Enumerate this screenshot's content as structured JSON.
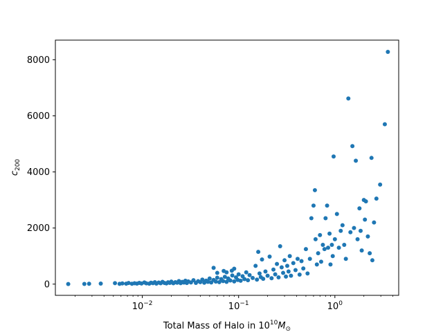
{
  "chart_data": {
    "type": "scatter",
    "xlabel": "Total Mass of Halo in 10^10 M_⊙",
    "xlabel_parts": {
      "prefix": "Total Mass of Halo in 10",
      "exp": "10",
      "symbol": "M",
      "sub": "⊙"
    },
    "ylabel": "c_200",
    "ylabel_parts": {
      "symbol": "c",
      "sub": "200"
    },
    "xscale": "log",
    "xlim": [
      0.00125,
      4.6
    ],
    "ylim": [
      -400,
      8700
    ],
    "xticks": [
      {
        "value": 0.01,
        "base": "10",
        "exp": "−2"
      },
      {
        "value": 0.1,
        "base": "10",
        "exp": "−1"
      },
      {
        "value": 1,
        "base": "10",
        "exp": "0"
      }
    ],
    "yticks": [
      {
        "value": 0,
        "label": "0"
      },
      {
        "value": 2000,
        "label": "2000"
      },
      {
        "value": 4000,
        "label": "4000"
      },
      {
        "value": 6000,
        "label": "6000"
      },
      {
        "value": 8000,
        "label": "8000"
      }
    ],
    "grid": false,
    "color": "#1f77b4",
    "series": [
      {
        "points": [
          [
            0.0017,
            5
          ],
          [
            0.0025,
            8
          ],
          [
            0.0028,
            12
          ],
          [
            0.0037,
            20
          ],
          [
            0.0052,
            35
          ],
          [
            0.0058,
            10
          ],
          [
            0.0062,
            25
          ],
          [
            0.0068,
            15
          ],
          [
            0.0072,
            40
          ],
          [
            0.0078,
            12
          ],
          [
            0.0083,
            30
          ],
          [
            0.0088,
            18
          ],
          [
            0.0093,
            45
          ],
          [
            0.0098,
            22
          ],
          [
            0.0105,
            60
          ],
          [
            0.011,
            28
          ],
          [
            0.0118,
            15
          ],
          [
            0.0123,
            50
          ],
          [
            0.0129,
            35
          ],
          [
            0.0135,
            70
          ],
          [
            0.014,
            20
          ],
          [
            0.0148,
            55
          ],
          [
            0.0155,
            30
          ],
          [
            0.0162,
            80
          ],
          [
            0.017,
            40
          ],
          [
            0.0178,
            25
          ],
          [
            0.0185,
            65
          ],
          [
            0.0193,
            45
          ],
          [
            0.02,
            90
          ],
          [
            0.021,
            30
          ],
          [
            0.022,
            70
          ],
          [
            0.023,
            50
          ],
          [
            0.024,
            110
          ],
          [
            0.025,
            35
          ],
          [
            0.026,
            80
          ],
          [
            0.027,
            55
          ],
          [
            0.028,
            120
          ],
          [
            0.029,
            40
          ],
          [
            0.03,
            95
          ],
          [
            0.032,
            60
          ],
          [
            0.034,
            140
          ],
          [
            0.036,
            45
          ],
          [
            0.038,
            105
          ],
          [
            0.04,
            70
          ],
          [
            0.042,
            160
          ],
          [
            0.044,
            50
          ],
          [
            0.046,
            125
          ],
          [
            0.048,
            80
          ],
          [
            0.05,
            200
          ],
          [
            0.052,
            60
          ],
          [
            0.055,
            150
          ],
          [
            0.058,
            90
          ],
          [
            0.06,
            230
          ],
          [
            0.063,
            70
          ],
          [
            0.066,
            180
          ],
          [
            0.069,
            110
          ],
          [
            0.072,
            260
          ],
          [
            0.075,
            80
          ],
          [
            0.078,
            200
          ],
          [
            0.082,
            130
          ],
          [
            0.086,
            310
          ],
          [
            0.09,
            95
          ],
          [
            0.094,
            240
          ],
          [
            0.098,
            150
          ],
          [
            0.055,
            580
          ],
          [
            0.06,
            400
          ],
          [
            0.07,
            470
          ],
          [
            0.075,
            420
          ],
          [
            0.085,
            480
          ],
          [
            0.09,
            550
          ],
          [
            0.1,
            350
          ],
          [
            0.105,
            120
          ],
          [
            0.11,
            280
          ],
          [
            0.115,
            180
          ],
          [
            0.12,
            420
          ],
          [
            0.125,
            140
          ],
          [
            0.13,
            320
          ],
          [
            0.14,
            220
          ],
          [
            0.15,
            650
          ],
          [
            0.155,
            160
          ],
          [
            0.16,
            1150
          ],
          [
            0.165,
            380
          ],
          [
            0.17,
            250
          ],
          [
            0.175,
            880
          ],
          [
            0.18,
            190
          ],
          [
            0.19,
            450
          ],
          [
            0.2,
            300
          ],
          [
            0.21,
            980
          ],
          [
            0.22,
            210
          ],
          [
            0.23,
            520
          ],
          [
            0.24,
            350
          ],
          [
            0.25,
            720
          ],
          [
            0.26,
            240
          ],
          [
            0.27,
            1350
          ],
          [
            0.28,
            600
          ],
          [
            0.29,
            400
          ],
          [
            0.3,
            850
          ],
          [
            0.31,
            270
          ],
          [
            0.32,
            650
          ],
          [
            0.33,
            450
          ],
          [
            0.34,
            1000
          ],
          [
            0.35,
            300
          ],
          [
            0.37,
            750
          ],
          [
            0.39,
            500
          ],
          [
            0.41,
            900
          ],
          [
            0.43,
            340
          ],
          [
            0.45,
            820
          ],
          [
            0.47,
            560
          ],
          [
            0.5,
            1250
          ],
          [
            0.52,
            380
          ],
          [
            0.55,
            900
          ],
          [
            0.57,
            2350
          ],
          [
            0.6,
            2800
          ],
          [
            0.62,
            3350
          ],
          [
            0.63,
            1600
          ],
          [
            0.65,
            700
          ],
          [
            0.67,
            1100
          ],
          [
            0.7,
            1750
          ],
          [
            0.72,
            800
          ],
          [
            0.75,
            1400
          ],
          [
            0.78,
            1250
          ],
          [
            0.8,
            2350
          ],
          [
            0.83,
            2800
          ],
          [
            0.85,
            1300
          ],
          [
            0.88,
            1800
          ],
          [
            0.9,
            700
          ],
          [
            0.93,
            1400
          ],
          [
            0.95,
            1000
          ],
          [
            0.97,
            4550
          ],
          [
            1.0,
            1600
          ],
          [
            1.05,
            2500
          ],
          [
            1.1,
            1300
          ],
          [
            1.15,
            1900
          ],
          [
            1.2,
            2100
          ],
          [
            1.25,
            1400
          ],
          [
            1.3,
            900
          ],
          [
            1.38,
            6620
          ],
          [
            1.45,
            1850
          ],
          [
            1.52,
            4920
          ],
          [
            1.58,
            2000
          ],
          [
            1.65,
            4400
          ],
          [
            1.72,
            1600
          ],
          [
            1.8,
            2700
          ],
          [
            1.85,
            1900
          ],
          [
            1.9,
            1200
          ],
          [
            2.0,
            3000
          ],
          [
            2.05,
            2300
          ],
          [
            2.1,
            2950
          ],
          [
            2.2,
            1700
          ],
          [
            2.3,
            1100
          ],
          [
            2.4,
            4500
          ],
          [
            2.45,
            850
          ],
          [
            2.55,
            2200
          ],
          [
            2.7,
            3050
          ],
          [
            2.95,
            3550
          ],
          [
            3.3,
            5700
          ],
          [
            3.55,
            8280
          ]
        ]
      }
    ]
  }
}
